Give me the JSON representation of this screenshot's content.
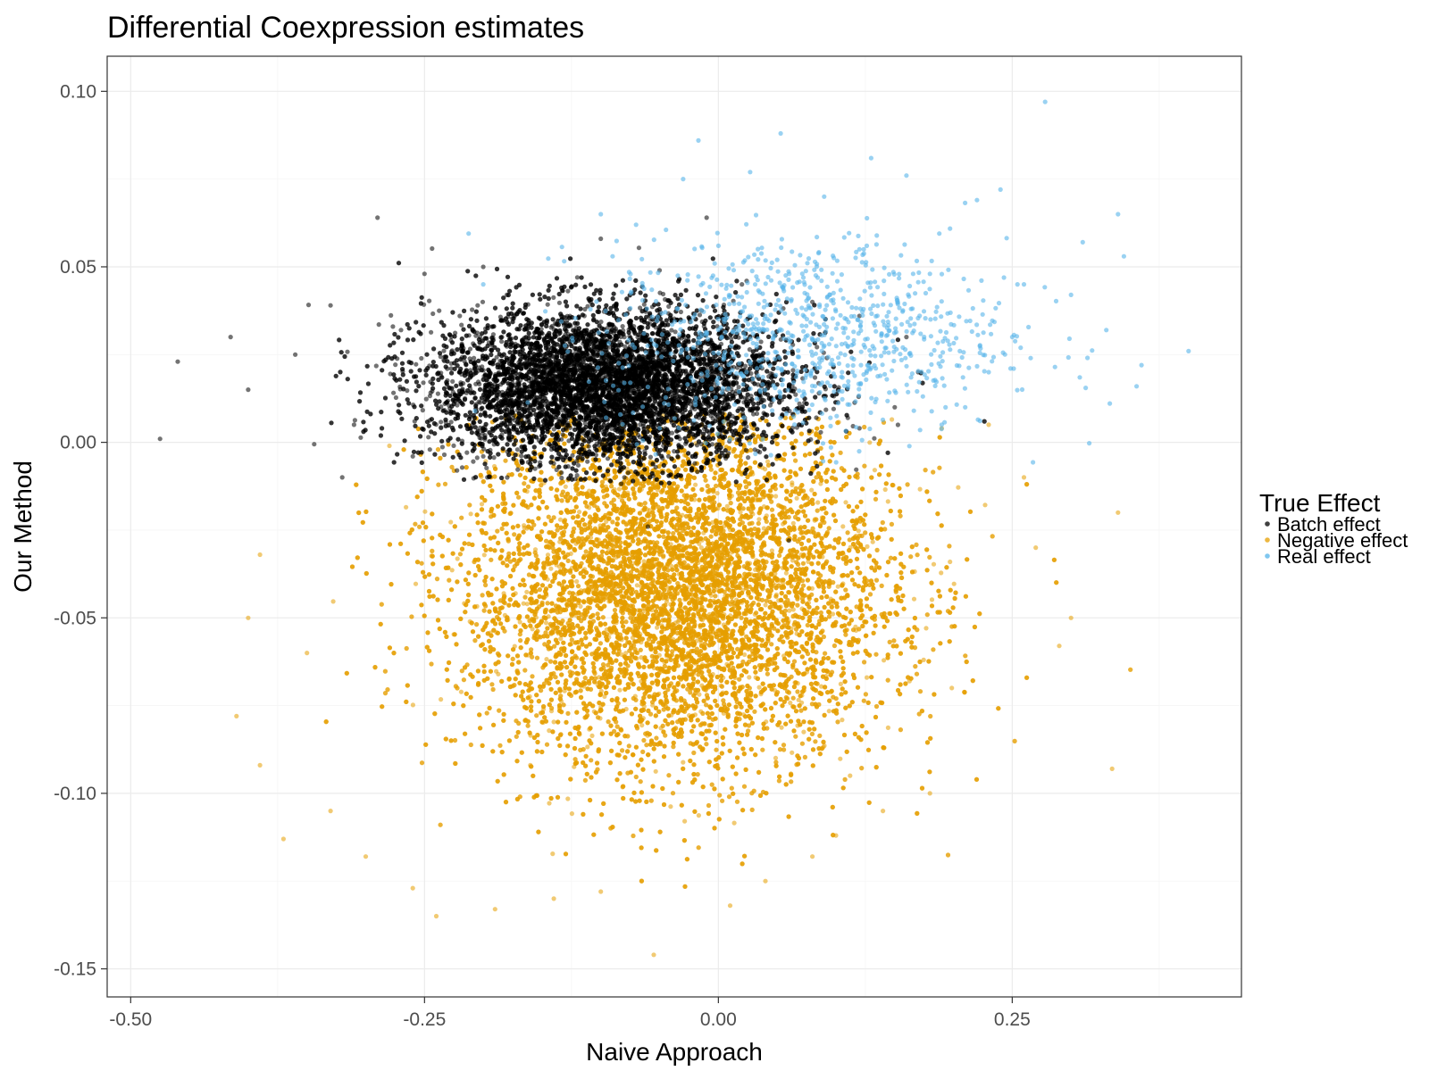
{
  "chart_data": {
    "type": "scatter",
    "title": "Differential Coexpression estimates",
    "xlabel": "Naive Approach",
    "ylabel": "Our Method",
    "xlim": [
      -0.52,
      0.445
    ],
    "ylim": [
      -0.158,
      0.11
    ],
    "x_ticks": [
      -0.5,
      -0.25,
      0.0,
      0.25
    ],
    "x_tick_labels": [
      "-0.50",
      "-0.25",
      "0.00",
      "0.25"
    ],
    "y_ticks": [
      0.1,
      0.05,
      0.0,
      -0.05,
      -0.1,
      -0.15
    ],
    "y_tick_labels": [
      "0.10",
      "0.05",
      "0.00",
      "-0.05",
      "-0.10",
      "-0.15"
    ],
    "grid": true,
    "legend": {
      "title": "True Effect",
      "position": "right",
      "entries": [
        {
          "label": "Batch effect",
          "color": "#000000"
        },
        {
          "label": "Negative effect",
          "color": "#E69F00"
        },
        {
          "label": "Real effect",
          "color": "#56B4E9"
        }
      ]
    },
    "series": [
      {
        "name": "Batch effect",
        "color": "#000000",
        "opacity": 0.55,
        "points": [
          [
            -0.475,
            0.001
          ],
          [
            -0.46,
            0.023
          ],
          [
            -0.29,
            0.064
          ],
          [
            -0.415,
            0.03
          ],
          [
            -0.4,
            0.015
          ],
          [
            -0.36,
            0.025
          ],
          [
            -0.33,
            0.039
          ],
          [
            -0.25,
            0.048
          ],
          [
            -0.2,
            0.05
          ],
          [
            -0.1,
            0.058
          ],
          [
            -0.01,
            0.064
          ],
          [
            -0.31,
            0.005
          ],
          [
            -0.27,
            0.032
          ],
          [
            -0.22,
            0.036
          ],
          [
            -0.18,
            0.042
          ],
          [
            -0.12,
            0.047
          ],
          [
            -0.05,
            0.049
          ],
          [
            0.02,
            0.045
          ],
          [
            0.08,
            0.04
          ],
          [
            0.12,
            0.036
          ],
          [
            0.16,
            0.03
          ],
          [
            0.17,
            0.02
          ],
          [
            0.15,
            0.01
          ],
          [
            0.12,
            0.004
          ],
          [
            0.05,
            -0.004
          ],
          [
            -0.02,
            -0.006
          ],
          [
            -0.08,
            -0.01
          ],
          [
            -0.14,
            -0.006
          ],
          [
            -0.2,
            -0.004
          ],
          [
            -0.26,
            -0.004
          ],
          [
            -0.32,
            -0.01
          ],
          [
            -0.06,
            -0.024
          ],
          [
            0.06,
            -0.028
          ],
          [
            -0.15,
            0.015
          ],
          [
            -0.1,
            0.01
          ],
          [
            -0.05,
            0.02
          ],
          [
            0.0,
            0.025
          ],
          [
            -0.08,
            0.03
          ],
          [
            -0.12,
            0.005
          ],
          [
            -0.03,
            0.008
          ]
        ],
        "cloud": {
          "n": 9000,
          "x_mean": -0.095,
          "x_sd": 0.075,
          "y_mean": 0.016,
          "y_sd": 0.011,
          "y_min": -0.012,
          "y_max": 0.06
        }
      },
      {
        "name": "Negative effect",
        "color": "#E69F00",
        "opacity": 0.55,
        "points": [
          [
            -0.055,
            -0.146
          ],
          [
            -0.24,
            -0.135
          ],
          [
            -0.19,
            -0.133
          ],
          [
            -0.41,
            -0.078
          ],
          [
            -0.39,
            -0.092
          ],
          [
            -0.37,
            -0.113
          ],
          [
            -0.3,
            -0.118
          ],
          [
            -0.26,
            -0.127
          ],
          [
            -0.14,
            -0.13
          ],
          [
            0.04,
            -0.125
          ],
          [
            0.1,
            -0.112
          ],
          [
            0.14,
            -0.105
          ],
          [
            0.18,
            -0.1
          ],
          [
            0.335,
            -0.093
          ],
          [
            0.3,
            -0.05
          ],
          [
            0.29,
            -0.058
          ],
          [
            0.34,
            -0.02
          ],
          [
            0.27,
            -0.03
          ],
          [
            0.26,
            -0.01
          ],
          [
            0.23,
            0.005
          ],
          [
            0.19,
            0.004
          ],
          [
            -0.39,
            -0.032
          ],
          [
            -0.4,
            -0.05
          ],
          [
            -0.35,
            -0.06
          ],
          [
            0.01,
            -0.132
          ],
          [
            -0.1,
            -0.128
          ],
          [
            0.08,
            -0.118
          ],
          [
            -0.33,
            -0.105
          ]
        ],
        "cloud": {
          "n": 15000,
          "x_mean": -0.035,
          "x_sd": 0.09,
          "y_mean": -0.042,
          "y_sd": 0.025,
          "y_min": -0.14,
          "y_max": 0.008
        }
      },
      {
        "name": "Real effect",
        "color": "#56B4E9",
        "opacity": 0.6,
        "points": [
          [
            0.278,
            0.097
          ],
          [
            0.053,
            0.088
          ],
          [
            -0.017,
            0.086
          ],
          [
            0.13,
            0.081
          ],
          [
            0.027,
            0.077
          ],
          [
            -0.03,
            0.075
          ],
          [
            0.24,
            0.072
          ],
          [
            0.34,
            0.065
          ],
          [
            0.22,
            0.069
          ],
          [
            0.4,
            0.026
          ],
          [
            0.36,
            0.022
          ],
          [
            0.345,
            0.053
          ],
          [
            0.31,
            0.057
          ],
          [
            0.09,
            0.07
          ],
          [
            0.16,
            0.076
          ],
          [
            -0.1,
            0.065
          ],
          [
            -0.07,
            0.062
          ],
          [
            0.3,
            0.042
          ],
          [
            0.33,
            0.032
          ],
          [
            0.25,
            0.03
          ],
          [
            0.23,
            0.02
          ],
          [
            0.21,
            0.01
          ],
          [
            0.19,
            0.005
          ],
          [
            -0.2,
            0.045
          ],
          [
            -0.09,
            0.053
          ],
          [
            0.0,
            0.056
          ],
          [
            0.05,
            0.052
          ],
          [
            0.12,
            0.055
          ],
          [
            0.18,
            0.048
          ],
          [
            0.26,
            0.045
          ]
        ],
        "cloud": {
          "n": 900,
          "x_mean": 0.075,
          "x_sd": 0.085,
          "y_mean": 0.03,
          "y_sd": 0.014,
          "y_min": -0.006,
          "y_max": 0.07
        }
      }
    ]
  }
}
